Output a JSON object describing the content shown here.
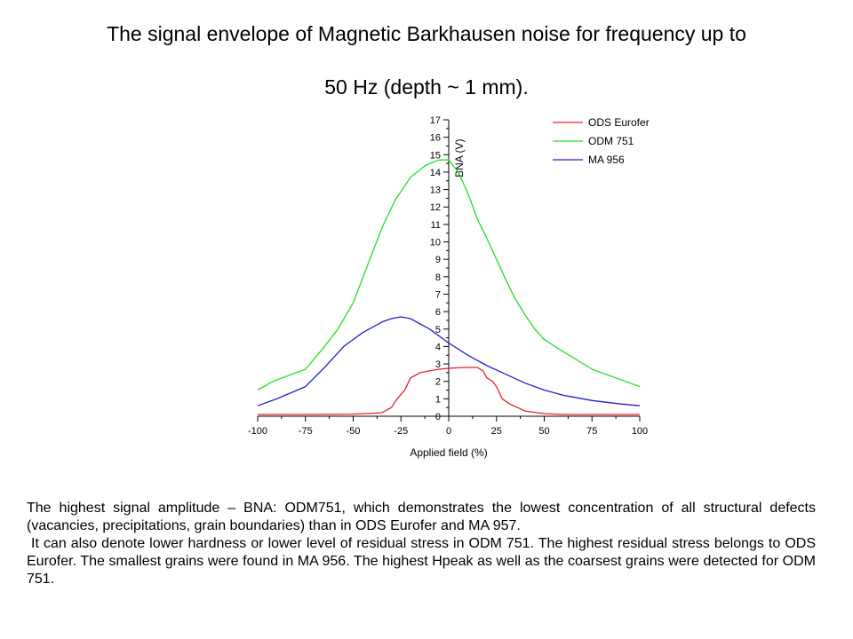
{
  "slide": {
    "title_line1": "The signal envelope of Magnetic Barkhausen noise for frequency up to",
    "title_line2": "50 Hz (depth ~ 1 mm).",
    "paragraph1": "The highest signal amplitude – BNA: ODM751, which demonstrates the lowest concentration of all structural defects (vacancies, precipitations, grain boundaries) than in ODS Eurofer and MA 957.",
    "paragraph2": "It can also denote lower hardness or lower level of residual stress in ODM 751. The highest residual stress belongs to ODS Eurofer. The smallest grains were found in MA 956. The highest Hpeak as well as the coarsest grains were detected for ODM 751."
  },
  "chart_data": {
    "type": "line",
    "xlabel": "Applied field (%)",
    "ylabel": "BNA (V)",
    "xlim": [
      -100,
      100
    ],
    "ylim": [
      0,
      17
    ],
    "xticks": [
      -100,
      -75,
      -50,
      -25,
      0,
      25,
      50,
      75,
      100
    ],
    "yticks": [
      0,
      1,
      2,
      3,
      4,
      5,
      6,
      7,
      8,
      9,
      10,
      11,
      12,
      13,
      14,
      15,
      16,
      17
    ],
    "legend_position": "top-right",
    "grid": false,
    "series": [
      {
        "name": "ODS Eurofer",
        "color": "#e8202a",
        "points": [
          [
            -100,
            0.1
          ],
          [
            -75,
            0.1
          ],
          [
            -50,
            0.12
          ],
          [
            -35,
            0.2
          ],
          [
            -30,
            0.5
          ],
          [
            -27,
            1.0
          ],
          [
            -23,
            1.5
          ],
          [
            -20,
            2.2
          ],
          [
            -15,
            2.5
          ],
          [
            -10,
            2.6
          ],
          [
            -5,
            2.7
          ],
          [
            0,
            2.75
          ],
          [
            5,
            2.78
          ],
          [
            10,
            2.8
          ],
          [
            15,
            2.8
          ],
          [
            18,
            2.6
          ],
          [
            20,
            2.2
          ],
          [
            23,
            2.0
          ],
          [
            25,
            1.7
          ],
          [
            28,
            1.0
          ],
          [
            32,
            0.7
          ],
          [
            40,
            0.3
          ],
          [
            50,
            0.15
          ],
          [
            60,
            0.1
          ],
          [
            75,
            0.1
          ],
          [
            100,
            0.1
          ]
        ]
      },
      {
        "name": "ODM 751",
        "color": "#22e022",
        "points": [
          [
            -100,
            1.5
          ],
          [
            -92,
            2.0
          ],
          [
            -75,
            2.7
          ],
          [
            -65,
            4.0
          ],
          [
            -58,
            5.0
          ],
          [
            -50,
            6.5
          ],
          [
            -42,
            8.8
          ],
          [
            -35,
            10.8
          ],
          [
            -28,
            12.4
          ],
          [
            -20,
            13.7
          ],
          [
            -12,
            14.4
          ],
          [
            -5,
            14.7
          ],
          [
            0,
            14.7
          ],
          [
            5,
            14.0
          ],
          [
            10,
            12.8
          ],
          [
            15,
            11.3
          ],
          [
            20,
            10.2
          ],
          [
            25,
            9.0
          ],
          [
            30,
            7.8
          ],
          [
            35,
            6.7
          ],
          [
            40,
            5.8
          ],
          [
            45,
            5.0
          ],
          [
            50,
            4.4
          ],
          [
            60,
            3.7
          ],
          [
            75,
            2.7
          ],
          [
            90,
            2.1
          ],
          [
            100,
            1.7
          ]
        ]
      },
      {
        "name": "MA 956",
        "color": "#2020d0",
        "points": [
          [
            -100,
            0.6
          ],
          [
            -90,
            1.0
          ],
          [
            -75,
            1.7
          ],
          [
            -65,
            2.8
          ],
          [
            -55,
            4.0
          ],
          [
            -45,
            4.8
          ],
          [
            -35,
            5.4
          ],
          [
            -30,
            5.6
          ],
          [
            -25,
            5.7
          ],
          [
            -20,
            5.6
          ],
          [
            -10,
            5.0
          ],
          [
            0,
            4.2
          ],
          [
            10,
            3.5
          ],
          [
            20,
            2.9
          ],
          [
            30,
            2.4
          ],
          [
            40,
            1.9
          ],
          [
            50,
            1.5
          ],
          [
            60,
            1.2
          ],
          [
            75,
            0.9
          ],
          [
            90,
            0.7
          ],
          [
            100,
            0.6
          ]
        ]
      }
    ]
  }
}
